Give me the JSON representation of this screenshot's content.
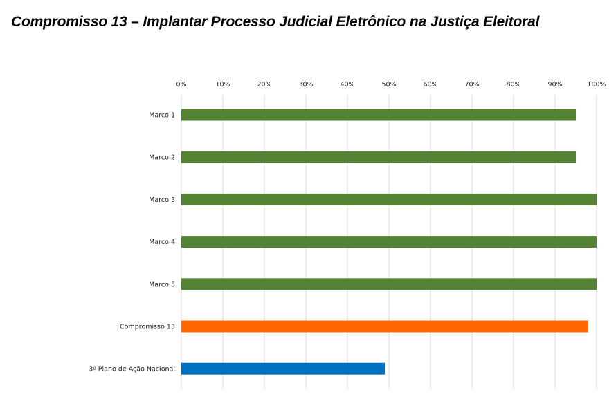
{
  "chart_data": {
    "type": "bar",
    "orientation": "horizontal",
    "title": "Compromisso 13 – Implantar Processo Judicial Eletrônico na Justiça Eleitoral",
    "categories": [
      "Marco 1",
      "Marco 2",
      "Marco 3",
      "Marco 4",
      "Marco 5",
      "Compromisso 13",
      "3º Plano de Ação Nacional"
    ],
    "values": [
      95,
      95,
      100,
      100,
      100,
      98,
      49
    ],
    "colors": [
      "#548235",
      "#548235",
      "#548235",
      "#548235",
      "#548235",
      "#ff6600",
      "#0070c0"
    ],
    "xlim": [
      0,
      100
    ],
    "x_ticks": [
      "0%",
      "10%",
      "20%",
      "30%",
      "40%",
      "50%",
      "60%",
      "70%",
      "80%",
      "90%",
      "100%"
    ],
    "x_axis_position": "top",
    "grid": true,
    "legend": "none"
  }
}
